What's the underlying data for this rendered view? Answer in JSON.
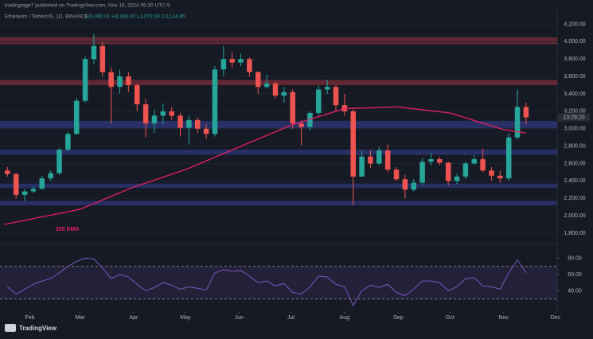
{
  "header": {
    "watermark": "tradingrage7 published on TradingView.com, Nov 16, 2024 05:30 UTC-5",
    "symbol": "Ethereum / TetherUS, 1D, BINANCE",
    "ohlc": "O3,080.01 H3,165.00 L3,072.00 C3,124.85",
    "countdown": "13:29:20",
    "logo": "TradingView"
  },
  "chart_data": {
    "type": "candlestick",
    "x": [
      2,
      7,
      12,
      17,
      22,
      27,
      32,
      37,
      42,
      47,
      52,
      57,
      62,
      67,
      72,
      77,
      82,
      87,
      92,
      97,
      102,
      107,
      112,
      117,
      122,
      127,
      132,
      137,
      142,
      147,
      152,
      157,
      162,
      167,
      172,
      177,
      182,
      187,
      192,
      197,
      202,
      207,
      212,
      217,
      222,
      227,
      232,
      237,
      242,
      247,
      252,
      257,
      262,
      267,
      272,
      277,
      282,
      287,
      292,
      297,
      302
    ],
    "open": [
      2520,
      2480,
      2240,
      2280,
      2310,
      2430,
      2490,
      2760,
      2940,
      3320,
      3800,
      3950,
      3650,
      3480,
      3600,
      3500,
      3280,
      3060,
      3150,
      3200,
      3150,
      3010,
      3100,
      3000,
      2940,
      3680,
      3800,
      3760,
      3800,
      3650,
      3480,
      3520,
      3380,
      3420,
      3060,
      3020,
      3180,
      3450,
      3480,
      3270,
      3200,
      2450,
      2680,
      2600,
      2750,
      2530,
      2420,
      2300,
      2380,
      2620,
      2650,
      2610,
      2400,
      2450,
      2600,
      2650,
      2520,
      2460,
      2430,
      2900,
      3250
    ],
    "high": [
      2560,
      2490,
      2310,
      2340,
      2460,
      2520,
      2780,
      2960,
      3350,
      3830,
      4090,
      4000,
      3700,
      3680,
      3650,
      3520,
      3340,
      3220,
      3290,
      3250,
      3180,
      3150,
      3130,
      3060,
      3720,
      3950,
      3880,
      3860,
      3820,
      3660,
      3620,
      3540,
      3480,
      3450,
      3100,
      3200,
      3500,
      3560,
      3500,
      3400,
      3220,
      2750,
      2750,
      2790,
      2820,
      2560,
      2470,
      2420,
      2660,
      2720,
      2680,
      2620,
      2480,
      2620,
      2700,
      2770,
      2560,
      2520,
      2950,
      3450,
      3300
    ],
    "low": [
      2450,
      2200,
      2170,
      2260,
      2300,
      2400,
      2470,
      2740,
      2930,
      3300,
      3740,
      3600,
      3060,
      3400,
      3420,
      3200,
      2900,
      2950,
      3050,
      3100,
      2910,
      2820,
      2950,
      2880,
      2910,
      3600,
      3700,
      3720,
      3600,
      3400,
      3460,
      3350,
      3300,
      3000,
      2810,
      2980,
      3150,
      3400,
      3200,
      3150,
      2120,
      2450,
      2550,
      2580,
      2500,
      2400,
      2200,
      2280,
      2360,
      2580,
      2580,
      2350,
      2360,
      2420,
      2580,
      2500,
      2400,
      2380,
      2400,
      2880,
      3050
    ],
    "close": [
      2480,
      2240,
      2280,
      2310,
      2430,
      2490,
      2760,
      2940,
      3320,
      3800,
      3950,
      3650,
      3480,
      3600,
      3500,
      3280,
      3060,
      3150,
      3200,
      3150,
      3010,
      3100,
      3000,
      2940,
      3680,
      3800,
      3760,
      3800,
      3650,
      3480,
      3520,
      3380,
      3420,
      3060,
      3020,
      3180,
      3450,
      3480,
      3270,
      3200,
      2450,
      2680,
      2600,
      2750,
      2530,
      2420,
      2300,
      2380,
      2620,
      2650,
      2610,
      2400,
      2450,
      2600,
      2650,
      2520,
      2460,
      2430,
      2900,
      3250,
      3130
    ],
    "up_color": "#26a69a",
    "down_color": "#ef5350",
    "xlim": [
      0,
      320
    ],
    "xticks": [
      {
        "value": 15,
        "label": "Feb"
      },
      {
        "value": 44,
        "label": "Mar"
      },
      {
        "value": 75,
        "label": "Apr"
      },
      {
        "value": 105,
        "label": "May"
      },
      {
        "value": 136,
        "label": "Jun"
      },
      {
        "value": 166,
        "label": "Jul"
      },
      {
        "value": 197,
        "label": "Aug"
      },
      {
        "value": 228,
        "label": "Sep"
      },
      {
        "value": 258,
        "label": "Oct"
      },
      {
        "value": 289,
        "label": "Nov"
      },
      {
        "value": 319,
        "label": "Dec"
      }
    ],
    "ylim": [
      1700,
      4350
    ],
    "yticks": [
      {
        "value": 1800,
        "label": "1,800.00"
      },
      {
        "value": 2000,
        "label": "2,000.00"
      },
      {
        "value": 2200,
        "label": "2,200.00"
      },
      {
        "value": 2400,
        "label": "2,400.00"
      },
      {
        "value": 2600,
        "label": "2,600.00"
      },
      {
        "value": 2800,
        "label": "2,800.00"
      },
      {
        "value": 3000,
        "label": "3,000.00"
      },
      {
        "value": 3200,
        "label": "3,200.00"
      },
      {
        "value": 3400,
        "label": "3,400.00"
      },
      {
        "value": 3600,
        "label": "3,600.00"
      },
      {
        "value": 3800,
        "label": "3,800.00"
      },
      {
        "value": 4000,
        "label": "4,000.00"
      },
      {
        "value": 4200,
        "label": "4,200.00"
      }
    ],
    "zones": [
      {
        "low": 3970,
        "high": 4050,
        "color": "#6e2a36"
      },
      {
        "low": 3500,
        "high": 3560,
        "color": "#6e2a36"
      },
      {
        "low": 3000,
        "high": 3090,
        "color": "#2a3470"
      },
      {
        "low": 2700,
        "high": 2760,
        "color": "#2a3470"
      },
      {
        "low": 2320,
        "high": 2370,
        "color": "#2a3470"
      },
      {
        "low": 2120,
        "high": 2170,
        "color": "#2a3470"
      }
    ],
    "dma": {
      "name": "200 DMA",
      "color": "#e91e63",
      "x": [
        0,
        44,
        75,
        105,
        136,
        166,
        197,
        228,
        258,
        289,
        302
      ],
      "values": [
        1900,
        2075,
        2330,
        2530,
        2790,
        3040,
        3230,
        3250,
        3180,
        2990,
        2950
      ]
    },
    "rsi": {
      "color": "#7e57c2",
      "ylim": [
        20,
        96
      ],
      "band": [
        30,
        70
      ],
      "yticks": [
        {
          "value": 40,
          "label": "40.00"
        },
        {
          "value": 60,
          "label": "60.00"
        },
        {
          "value": 80,
          "label": "80.00"
        }
      ],
      "values": [
        45,
        36,
        42,
        48,
        52,
        55,
        62,
        70,
        76,
        80,
        79,
        68,
        55,
        60,
        57,
        48,
        40,
        44,
        50,
        47,
        42,
        45,
        43,
        41,
        62,
        66,
        64,
        65,
        58,
        50,
        52,
        46,
        49,
        38,
        36,
        45,
        58,
        57,
        48,
        45,
        22,
        40,
        47,
        44,
        48,
        38,
        34,
        42,
        52,
        52,
        50,
        40,
        45,
        55,
        56,
        46,
        45,
        42,
        62,
        78,
        62
      ]
    }
  }
}
